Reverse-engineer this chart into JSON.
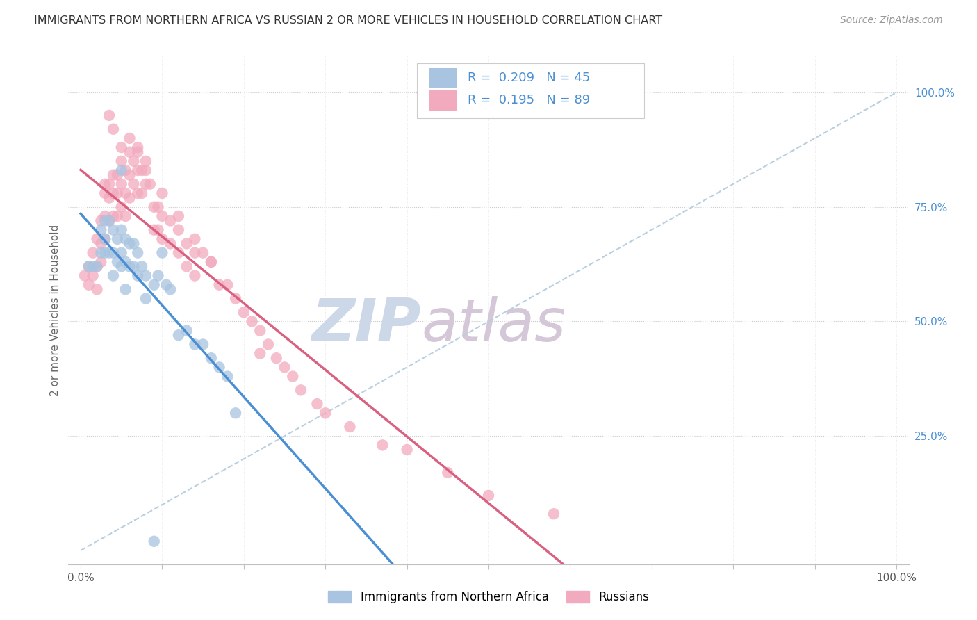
{
  "title": "IMMIGRANTS FROM NORTHERN AFRICA VS RUSSIAN 2 OR MORE VEHICLES IN HOUSEHOLD CORRELATION CHART",
  "source": "Source: ZipAtlas.com",
  "ylabel": "2 or more Vehicles in Household",
  "legend_blue_label": "Immigrants from Northern Africa",
  "legend_pink_label": "Russians",
  "R_blue": "0.209",
  "N_blue": "45",
  "R_pink": "0.195",
  "N_pink": "89",
  "blue_color": "#a8c4e0",
  "pink_color": "#f2aabe",
  "blue_line_color": "#4a8fd4",
  "pink_line_color": "#d96080",
  "dashed_color": "#b8cfe0",
  "watermark_zip_color": "#ccd8e8",
  "watermark_atlas_color": "#d4c8d8",
  "title_color": "#333333",
  "source_color": "#999999",
  "axis_color": "#4a8fd4",
  "legend_text_color": "#4a8fd4",
  "blue_scatter_x": [
    1.0,
    1.5,
    2.0,
    2.5,
    2.5,
    3.0,
    3.0,
    3.0,
    3.5,
    3.5,
    4.0,
    4.0,
    4.0,
    4.5,
    4.5,
    5.0,
    5.0,
    5.0,
    5.5,
    5.5,
    5.5,
    6.0,
    6.0,
    6.5,
    6.5,
    7.0,
    7.0,
    7.5,
    8.0,
    8.0,
    9.0,
    9.5,
    10.0,
    10.5,
    11.0,
    12.0,
    13.0,
    14.0,
    15.0,
    16.0,
    17.0,
    18.0,
    19.0,
    5.0,
    9.0
  ],
  "blue_scatter_y": [
    0.62,
    0.62,
    0.62,
    0.7,
    0.65,
    0.72,
    0.68,
    0.65,
    0.72,
    0.65,
    0.7,
    0.65,
    0.6,
    0.68,
    0.63,
    0.7,
    0.65,
    0.62,
    0.68,
    0.63,
    0.57,
    0.67,
    0.62,
    0.67,
    0.62,
    0.65,
    0.6,
    0.62,
    0.6,
    0.55,
    0.58,
    0.6,
    0.65,
    0.58,
    0.57,
    0.47,
    0.48,
    0.45,
    0.45,
    0.42,
    0.4,
    0.38,
    0.3,
    0.83,
    0.02
  ],
  "pink_scatter_x": [
    0.5,
    1.0,
    1.0,
    1.5,
    1.5,
    2.0,
    2.0,
    2.0,
    2.5,
    2.5,
    2.5,
    3.0,
    3.0,
    3.0,
    3.0,
    3.5,
    3.5,
    3.5,
    4.0,
    4.0,
    4.0,
    4.5,
    4.5,
    4.5,
    5.0,
    5.0,
    5.0,
    5.5,
    5.5,
    5.5,
    6.0,
    6.0,
    6.0,
    6.5,
    6.5,
    7.0,
    7.0,
    7.0,
    7.5,
    7.5,
    8.0,
    8.0,
    8.5,
    9.0,
    9.0,
    9.5,
    9.5,
    10.0,
    10.0,
    11.0,
    11.0,
    12.0,
    12.0,
    13.0,
    13.0,
    14.0,
    14.0,
    15.0,
    16.0,
    17.0,
    18.0,
    19.0,
    20.0,
    21.0,
    22.0,
    22.0,
    23.0,
    24.0,
    25.0,
    26.0,
    27.0,
    29.0,
    30.0,
    33.0,
    37.0,
    40.0,
    45.0,
    50.0,
    58.0,
    3.5,
    4.0,
    5.0,
    6.0,
    7.0,
    8.0,
    10.0,
    12.0,
    14.0,
    16.0
  ],
  "pink_scatter_y": [
    0.6,
    0.62,
    0.58,
    0.65,
    0.6,
    0.68,
    0.62,
    0.57,
    0.72,
    0.67,
    0.63,
    0.8,
    0.78,
    0.73,
    0.68,
    0.8,
    0.77,
    0.72,
    0.82,
    0.78,
    0.73,
    0.82,
    0.78,
    0.73,
    0.85,
    0.8,
    0.75,
    0.83,
    0.78,
    0.73,
    0.87,
    0.82,
    0.77,
    0.85,
    0.8,
    0.87,
    0.83,
    0.78,
    0.83,
    0.78,
    0.85,
    0.8,
    0.8,
    0.75,
    0.7,
    0.75,
    0.7,
    0.73,
    0.68,
    0.72,
    0.67,
    0.7,
    0.65,
    0.67,
    0.62,
    0.65,
    0.6,
    0.65,
    0.63,
    0.58,
    0.58,
    0.55,
    0.52,
    0.5,
    0.48,
    0.43,
    0.45,
    0.42,
    0.4,
    0.38,
    0.35,
    0.32,
    0.3,
    0.27,
    0.23,
    0.22,
    0.17,
    0.12,
    0.08,
    0.95,
    0.92,
    0.88,
    0.9,
    0.88,
    0.83,
    0.78,
    0.73,
    0.68,
    0.63
  ],
  "xlim_max": 100.0,
  "ylim_max": 1.05,
  "figsize": [
    14.06,
    8.92
  ]
}
